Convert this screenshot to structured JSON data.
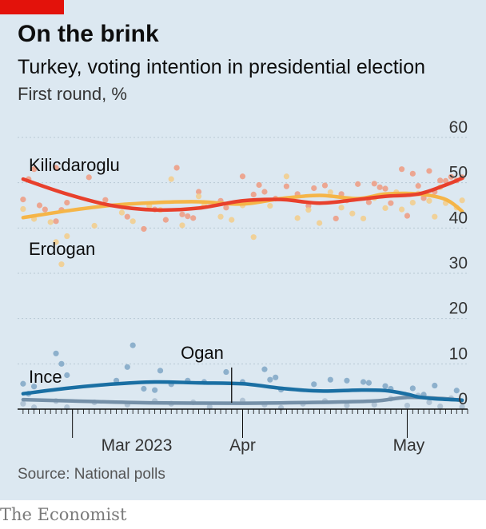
{
  "header": {
    "title": "On the brink",
    "subtitle": "Turkey, voting intention in presidential election",
    "unit": "First round, %"
  },
  "footer": {
    "source": "Source: National polls",
    "brand": "The Economist"
  },
  "colors": {
    "background": "#dce8f1",
    "accent": "#e3120b",
    "kilicdaroglu": "#e8402c",
    "kilicdaroglu_dots": "#ee9a80",
    "erdogan": "#f5b548",
    "erdogan_dots": "#f3cd8a",
    "ince": "#1a6fa3",
    "ince_dots": "#7fa6c6",
    "ogan": "#7590a8",
    "ogan_dots": "#a9bdd0"
  },
  "chart_data": {
    "type": "scatter",
    "title": "On the brink",
    "subtitle": "Turkey, voting intention in presidential election",
    "ylabel": "First round, %",
    "ylim": [
      0,
      60
    ],
    "yticks": [
      0,
      10,
      20,
      30,
      40,
      50,
      60
    ],
    "xlim": [
      "2023-02-19",
      "2023-05-12"
    ],
    "xticks": [
      {
        "date": "2023-03-01",
        "label": "Mar 2023"
      },
      {
        "date": "2023-04-01",
        "label": "Apr"
      },
      {
        "date": "2023-05-01",
        "label": "May"
      }
    ],
    "grid": true,
    "series": [
      {
        "name": "Kilicdaroglu",
        "color": "#e8402c",
        "trend": [
          [
            "2023-02-20",
            50.8
          ],
          [
            "2023-02-28",
            47.5
          ],
          [
            "2023-03-08",
            45.0
          ],
          [
            "2023-03-16",
            44.0
          ],
          [
            "2023-03-24",
            44.4
          ],
          [
            "2023-04-01",
            46.0
          ],
          [
            "2023-04-08",
            46.3
          ],
          [
            "2023-04-15",
            45.5
          ],
          [
            "2023-04-22",
            46.3
          ],
          [
            "2023-04-27",
            47.0
          ],
          [
            "2023-05-03",
            47.5
          ],
          [
            "2023-05-08",
            49.5
          ],
          [
            "2023-05-11",
            51.0
          ]
        ],
        "polls": [
          [
            "2023-02-20",
            46.3
          ],
          [
            "2023-02-21",
            50.8
          ],
          [
            "2023-02-22",
            53.0
          ],
          [
            "2023-02-23",
            45.0
          ],
          [
            "2023-02-24",
            44.1
          ],
          [
            "2023-02-26",
            53.3
          ],
          [
            "2023-02-26",
            41.5
          ],
          [
            "2023-02-27",
            44.0
          ],
          [
            "2023-02-28",
            45.6
          ],
          [
            "2023-03-04",
            51.2
          ],
          [
            "2023-03-07",
            46.2
          ],
          [
            "2023-03-11",
            42.5
          ],
          [
            "2023-03-14",
            39.8
          ],
          [
            "2023-03-16",
            44.1
          ],
          [
            "2023-03-18",
            41.8
          ],
          [
            "2023-03-20",
            53.3
          ],
          [
            "2023-03-21",
            43.0
          ],
          [
            "2023-03-22",
            42.6
          ],
          [
            "2023-03-23",
            42.2
          ],
          [
            "2023-03-24",
            48.0
          ],
          [
            "2023-03-28",
            46.0
          ],
          [
            "2023-03-29",
            44.5
          ],
          [
            "2023-04-01",
            51.4
          ],
          [
            "2023-04-03",
            47.4
          ],
          [
            "2023-04-04",
            49.5
          ],
          [
            "2023-04-05",
            48.0
          ],
          [
            "2023-04-07",
            46.5
          ],
          [
            "2023-04-09",
            49.2
          ],
          [
            "2023-04-11",
            47.5
          ],
          [
            "2023-04-13",
            44.9
          ],
          [
            "2023-04-14",
            48.8
          ],
          [
            "2023-04-16",
            49.4
          ],
          [
            "2023-04-18",
            42.1
          ],
          [
            "2023-04-19",
            47.5
          ],
          [
            "2023-04-20",
            46.1
          ],
          [
            "2023-04-22",
            49.7
          ],
          [
            "2023-04-24",
            45.7
          ],
          [
            "2023-04-25",
            49.8
          ],
          [
            "2023-04-26",
            49.0
          ],
          [
            "2023-04-27",
            48.7
          ],
          [
            "2023-04-28",
            45.5
          ],
          [
            "2023-04-30",
            53.0
          ],
          [
            "2023-05-01",
            42.7
          ],
          [
            "2023-05-02",
            52.0
          ],
          [
            "2023-05-03",
            49.3
          ],
          [
            "2023-05-04",
            46.6
          ],
          [
            "2023-05-05",
            52.6
          ],
          [
            "2023-05-06",
            48.0
          ],
          [
            "2023-05-07",
            50.5
          ],
          [
            "2023-05-08",
            50.4
          ],
          [
            "2023-05-09",
            51.3
          ],
          [
            "2023-05-10",
            50.5
          ],
          [
            "2023-05-11",
            51.2
          ]
        ]
      },
      {
        "name": "Erdogan",
        "color": "#f5b548",
        "trend": [
          [
            "2023-02-20",
            42.3
          ],
          [
            "2023-02-28",
            43.8
          ],
          [
            "2023-03-08",
            45.0
          ],
          [
            "2023-03-16",
            45.6
          ],
          [
            "2023-03-24",
            45.8
          ],
          [
            "2023-04-01",
            45.3
          ],
          [
            "2023-04-08",
            46.5
          ],
          [
            "2023-04-15",
            47.2
          ],
          [
            "2023-04-22",
            46.5
          ],
          [
            "2023-04-27",
            47.5
          ],
          [
            "2023-05-03",
            47.5
          ],
          [
            "2023-05-08",
            46.3
          ],
          [
            "2023-05-11",
            43.7
          ]
        ],
        "polls": [
          [
            "2023-02-20",
            44.2
          ],
          [
            "2023-02-22",
            42.0
          ],
          [
            "2023-02-25",
            41.3
          ],
          [
            "2023-02-26",
            36.9
          ],
          [
            "2023-02-27",
            32.0
          ],
          [
            "2023-02-28",
            38.2
          ],
          [
            "2023-03-05",
            40.5
          ],
          [
            "2023-03-10",
            43.4
          ],
          [
            "2023-03-12",
            41.5
          ],
          [
            "2023-03-15",
            44.9
          ],
          [
            "2023-03-17",
            44.0
          ],
          [
            "2023-03-19",
            50.8
          ],
          [
            "2023-03-21",
            40.6
          ],
          [
            "2023-03-24",
            47.0
          ],
          [
            "2023-03-25",
            45.0
          ],
          [
            "2023-03-28",
            42.5
          ],
          [
            "2023-03-30",
            41.8
          ],
          [
            "2023-04-01",
            45.0
          ],
          [
            "2023-04-03",
            38.0
          ],
          [
            "2023-04-06",
            44.9
          ],
          [
            "2023-04-09",
            51.4
          ],
          [
            "2023-04-11",
            42.2
          ],
          [
            "2023-04-13",
            44.0
          ],
          [
            "2023-04-15",
            41.1
          ],
          [
            "2023-04-17",
            47.9
          ],
          [
            "2023-04-19",
            44.5
          ],
          [
            "2023-04-21",
            43.2
          ],
          [
            "2023-04-23",
            42.1
          ],
          [
            "2023-04-25",
            46.6
          ],
          [
            "2023-04-27",
            44.4
          ],
          [
            "2023-04-29",
            47.9
          ],
          [
            "2023-04-30",
            44.1
          ],
          [
            "2023-05-02",
            45.6
          ],
          [
            "2023-05-03",
            47.6
          ],
          [
            "2023-05-05",
            46.0
          ],
          [
            "2023-05-06",
            42.5
          ],
          [
            "2023-05-07",
            49.0
          ],
          [
            "2023-05-08",
            45.5
          ],
          [
            "2023-05-10",
            44.5
          ],
          [
            "2023-05-11",
            46.1
          ]
        ]
      },
      {
        "name": "Ince",
        "color": "#1a6fa3",
        "trend": [
          [
            "2023-02-20",
            3.4
          ],
          [
            "2023-02-28",
            4.6
          ],
          [
            "2023-03-08",
            5.5
          ],
          [
            "2023-03-16",
            6.0
          ],
          [
            "2023-03-24",
            5.8
          ],
          [
            "2023-04-01",
            5.6
          ],
          [
            "2023-04-08",
            4.6
          ],
          [
            "2023-04-15",
            4.0
          ],
          [
            "2023-04-22",
            4.2
          ],
          [
            "2023-04-27",
            4.1
          ],
          [
            "2023-05-01",
            3.3
          ],
          [
            "2023-05-03",
            2.7
          ],
          [
            "2023-05-06",
            2.3
          ],
          [
            "2023-05-11",
            2.0
          ]
        ],
        "polls": [
          [
            "2023-02-20",
            5.6
          ],
          [
            "2023-02-21",
            3.4
          ],
          [
            "2023-02-22",
            5.0
          ],
          [
            "2023-02-26",
            12.3
          ],
          [
            "2023-02-27",
            10.0
          ],
          [
            "2023-02-28",
            7.5
          ],
          [
            "2023-03-09",
            6.3
          ],
          [
            "2023-03-11",
            9.3
          ],
          [
            "2023-03-12",
            14.1
          ],
          [
            "2023-03-14",
            4.5
          ],
          [
            "2023-03-16",
            4.2
          ],
          [
            "2023-03-17",
            8.5
          ],
          [
            "2023-03-19",
            5.5
          ],
          [
            "2023-03-22",
            6.3
          ],
          [
            "2023-03-25",
            6.0
          ],
          [
            "2023-03-29",
            8.2
          ],
          [
            "2023-04-01",
            6.0
          ],
          [
            "2023-04-05",
            8.8
          ],
          [
            "2023-04-06",
            6.5
          ],
          [
            "2023-04-07",
            7.0
          ],
          [
            "2023-04-08",
            4.3
          ],
          [
            "2023-04-14",
            5.5
          ],
          [
            "2023-04-17",
            6.5
          ],
          [
            "2023-04-20",
            6.3
          ],
          [
            "2023-04-23",
            6.0
          ],
          [
            "2023-04-24",
            5.8
          ],
          [
            "2023-04-27",
            5.1
          ],
          [
            "2023-04-28",
            4.5
          ],
          [
            "2023-05-02",
            4.6
          ],
          [
            "2023-05-04",
            3.2
          ],
          [
            "2023-05-06",
            5.2
          ],
          [
            "2023-05-10",
            4.1
          ]
        ]
      },
      {
        "name": "Ogan",
        "color": "#7590a8",
        "trend": [
          [
            "2023-02-20",
            2.1
          ],
          [
            "2023-03-01",
            1.8
          ],
          [
            "2023-03-15",
            1.4
          ],
          [
            "2023-04-01",
            1.3
          ],
          [
            "2023-04-15",
            1.5
          ],
          [
            "2023-04-25",
            1.8
          ],
          [
            "2023-05-01",
            2.6
          ],
          [
            "2023-05-08",
            2.3
          ],
          [
            "2023-05-11",
            1.9
          ]
        ],
        "polls": [
          [
            "2023-02-20",
            1.2
          ],
          [
            "2023-02-22",
            0.4
          ],
          [
            "2023-02-26",
            1.8
          ],
          [
            "2023-02-28",
            0.4
          ],
          [
            "2023-03-05",
            1.5
          ],
          [
            "2023-03-11",
            1.0
          ],
          [
            "2023-03-16",
            1.8
          ],
          [
            "2023-03-19",
            1.2
          ],
          [
            "2023-03-23",
            1.5
          ],
          [
            "2023-03-26",
            0.5
          ],
          [
            "2023-04-01",
            1.9
          ],
          [
            "2023-04-05",
            1.0
          ],
          [
            "2023-04-08",
            0.3
          ],
          [
            "2023-04-12",
            1.2
          ],
          [
            "2023-04-16",
            1.8
          ],
          [
            "2023-04-20",
            0.8
          ],
          [
            "2023-04-25",
            1.0
          ],
          [
            "2023-04-28",
            2.3
          ],
          [
            "2023-05-01",
            0.8
          ],
          [
            "2023-05-03",
            3.0
          ],
          [
            "2023-05-05",
            1.5
          ],
          [
            "2023-05-07",
            0.6
          ],
          [
            "2023-05-09",
            2.4
          ],
          [
            "2023-05-11",
            0.5
          ]
        ]
      }
    ],
    "labels": [
      {
        "text": "Kilicdaroglu",
        "series": "Kilicdaroglu"
      },
      {
        "text": "Erdogan",
        "series": "Erdogan"
      },
      {
        "text": "Ince",
        "series": "Ince"
      },
      {
        "text": "Ogan",
        "series": "Ogan"
      }
    ]
  }
}
